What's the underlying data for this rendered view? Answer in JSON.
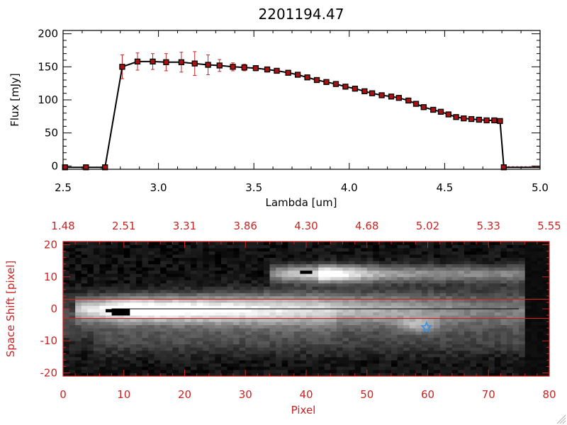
{
  "colors": {
    "axis_top": "#000000",
    "axis_bottom": "#cc2222",
    "error_bar": "#cc2222",
    "line": "#000000",
    "marker_fill": "#aa1111",
    "star": "#3a8fe0"
  },
  "chart_data": [
    {
      "type": "line",
      "title": "2201194.47",
      "xlabel": "Lambda [um]",
      "ylabel": "Flux [mJy]",
      "xlim": [
        2.5,
        5.0
      ],
      "ylim": [
        -5,
        205
      ],
      "x_ticks": [
        "2.5",
        "3.0",
        "3.5",
        "4.0",
        "4.5",
        "5.0"
      ],
      "y_ticks": [
        "0",
        "50",
        "100",
        "150",
        "200"
      ],
      "grid": false,
      "series": [
        {
          "x": [
            2.51,
            2.62,
            2.72,
            2.81,
            2.89,
            2.97,
            3.04,
            3.12,
            3.19,
            3.26,
            3.32,
            3.39,
            3.45,
            3.51,
            3.57,
            3.62,
            3.68,
            3.73,
            3.78,
            3.83,
            3.88,
            3.93,
            3.98,
            4.03,
            4.08,
            4.12,
            4.17,
            4.22,
            4.26,
            4.31,
            4.35,
            4.39,
            4.44,
            4.48,
            4.52,
            4.56,
            4.6,
            4.64,
            4.68,
            4.72,
            4.76,
            4.79,
            4.81,
            4.85,
            4.9,
            4.95,
            5.0
          ],
          "y": [
            -2,
            -2,
            -2,
            150,
            158,
            158,
            157,
            157,
            155,
            153,
            152,
            150,
            149,
            148,
            146,
            144,
            141,
            138,
            134,
            130,
            127,
            124,
            120,
            117,
            113,
            110,
            107,
            105,
            103,
            99,
            94,
            89,
            85,
            82,
            78,
            74,
            72,
            71,
            70,
            69,
            69,
            68,
            -2,
            -2,
            -2,
            -2,
            -2
          ],
          "yerr": [
            0,
            0,
            0,
            18,
            13,
            12,
            13,
            15,
            18,
            15,
            9,
            6,
            5,
            4,
            4,
            3,
            3,
            3,
            3,
            3,
            3,
            3,
            3,
            3,
            3,
            3,
            3,
            3,
            3,
            3,
            3,
            3,
            3,
            3,
            3,
            3,
            3,
            3,
            3,
            3,
            3,
            3,
            0,
            0,
            0,
            0,
            0
          ]
        }
      ]
    },
    {
      "type": "heatmap",
      "xlabel": "Pixel",
      "ylabel": "Space Shift [pixel]",
      "xlim": [
        0,
        80
      ],
      "ylim": [
        -21,
        21
      ],
      "x_ticks": [
        "0",
        "10",
        "20",
        "30",
        "40",
        "50",
        "60",
        "70",
        "80"
      ],
      "y_ticks": [
        "-20",
        "-10",
        "0",
        "10",
        "20"
      ],
      "top_axis_ticks": [
        "1.48",
        "2.51",
        "3.31",
        "3.86",
        "4.30",
        "4.68",
        "5.02",
        "5.33",
        "5.55"
      ],
      "extraction_window": [
        -3,
        3
      ],
      "trace_center": 0,
      "sources": [
        {
          "pixel": 10,
          "shift": -1,
          "peak_pixel_range": [
            7,
            12
          ]
        },
        {
          "pixel": 40,
          "shift": 11,
          "peak_pixel_range": [
            39,
            41
          ]
        },
        {
          "pixel": 58,
          "shift": -5,
          "peak_pixel_range": [
            56,
            60
          ]
        }
      ],
      "marker": {
        "type": "star",
        "pixel": 59.8,
        "shift": -5.8
      }
    }
  ]
}
